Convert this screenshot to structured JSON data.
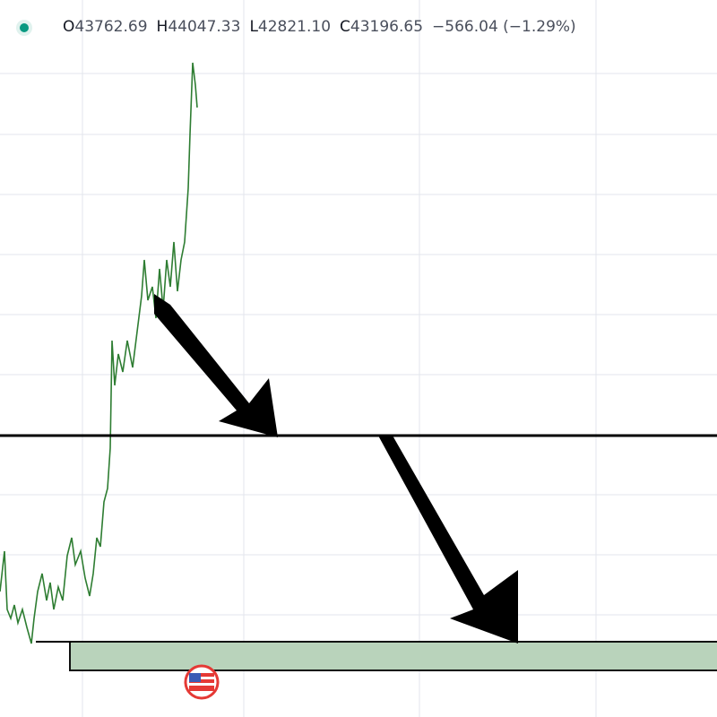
{
  "header": {
    "items": [
      {
        "label": "O",
        "value": "43762.69"
      },
      {
        "label": "H",
        "value": "44047.33"
      },
      {
        "label": "L",
        "value": "42821.10"
      },
      {
        "label": "C",
        "value": "43196.65"
      }
    ],
    "change": "−566.04 (−1.29%)"
  }
}
